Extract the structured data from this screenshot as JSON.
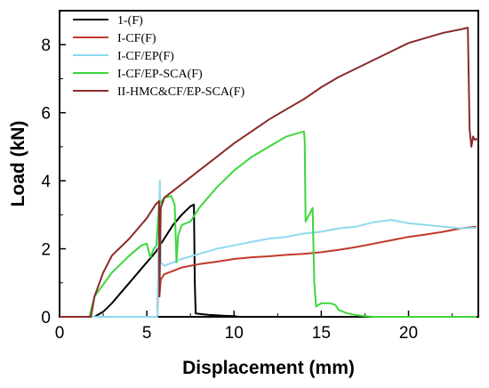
{
  "chart_data": {
    "type": "line",
    "title": "",
    "xlabel": "Displacement (mm)",
    "ylabel": "Load (kN)",
    "xlim": [
      0,
      24
    ],
    "ylim": [
      0,
      9
    ],
    "xticks": [
      0,
      5,
      10,
      15,
      20
    ],
    "yticks": [
      0,
      2,
      4,
      6,
      8
    ],
    "grid": false,
    "legend_position": "top-left",
    "series": [
      {
        "name": "1-(F)",
        "color": "#000000",
        "x": [
          0,
          2.0,
          2.5,
          3.0,
          3.5,
          4.0,
          4.5,
          5.0,
          5.5,
          6.0,
          6.5,
          7.0,
          7.5,
          7.7,
          7.75,
          7.8,
          8.5,
          9.5,
          10.0,
          10.3,
          23.9
        ],
        "y": [
          0,
          0,
          0.15,
          0.4,
          0.7,
          1.0,
          1.3,
          1.6,
          1.9,
          2.3,
          2.7,
          3.0,
          3.25,
          3.3,
          1.0,
          0.1,
          0.06,
          0.03,
          0.02,
          0.0,
          0.0
        ]
      },
      {
        "name": "I-CF(F)",
        "color": "#c0392b",
        "x": [
          0,
          5.6,
          5.7,
          5.72,
          5.8,
          6.0,
          6.5,
          7.0,
          8.0,
          9.0,
          10.0,
          11.0,
          12.0,
          13.0,
          14.0,
          15.0,
          16.0,
          17.0,
          18.0,
          19.0,
          20.0,
          21.0,
          22.0,
          23.0,
          23.9
        ],
        "y": [
          0,
          0,
          1.9,
          0.6,
          1.1,
          1.25,
          1.35,
          1.45,
          1.55,
          1.62,
          1.7,
          1.75,
          1.78,
          1.82,
          1.85,
          1.9,
          1.97,
          2.05,
          2.15,
          2.25,
          2.35,
          2.42,
          2.5,
          2.6,
          2.65
        ]
      },
      {
        "name": "I-CF/EP(F)",
        "color": "#8fd8f0",
        "x": [
          0,
          5.6,
          5.7,
          5.75,
          5.8,
          6.0,
          7.0,
          8.0,
          9.0,
          10.0,
          11.0,
          12.0,
          13.0,
          14.0,
          15.0,
          16.0,
          17.0,
          18.0,
          19.0,
          20.0,
          21.0,
          22.0,
          23.0,
          23.9
        ],
        "y": [
          0,
          0,
          3.0,
          4.0,
          1.6,
          1.5,
          1.7,
          1.85,
          2.0,
          2.1,
          2.2,
          2.3,
          2.35,
          2.45,
          2.5,
          2.6,
          2.65,
          2.78,
          2.85,
          2.75,
          2.7,
          2.65,
          2.6,
          2.62
        ]
      },
      {
        "name": "I-CF/EP-SCA(F)",
        "color": "#3dd63d",
        "x": [
          0,
          1.7,
          2.0,
          3.0,
          4.0,
          4.7,
          5.0,
          5.2,
          5.4,
          5.55,
          5.7,
          6.0,
          6.4,
          6.6,
          6.7,
          6.8,
          7.0,
          7.5,
          8.0,
          9.0,
          10.0,
          11.0,
          12.0,
          13.0,
          14.0,
          14.05,
          14.1,
          14.5,
          14.6,
          14.7,
          15.0,
          15.5,
          15.8,
          16.0,
          16.5,
          17.0,
          17.5,
          18.0,
          23.9
        ],
        "y": [
          0,
          0,
          0.6,
          1.3,
          1.8,
          2.1,
          2.15,
          1.75,
          2.0,
          2.1,
          3.3,
          3.5,
          3.55,
          3.3,
          1.6,
          2.4,
          2.7,
          2.8,
          3.2,
          3.8,
          4.3,
          4.7,
          5.0,
          5.3,
          5.45,
          5.2,
          2.8,
          3.2,
          1.0,
          0.3,
          0.4,
          0.4,
          0.35,
          0.2,
          0.1,
          0.05,
          0.02,
          0.0,
          0.0
        ]
      },
      {
        "name": "II-HMC&CF/EP-SCA(F)",
        "color": "#8b2a2a",
        "x": [
          0,
          1.8,
          2.0,
          2.5,
          3.0,
          4.0,
          5.0,
          5.5,
          5.7,
          5.72,
          5.8,
          6.0,
          7.0,
          8.0,
          9.0,
          10.0,
          11.0,
          12.0,
          13.0,
          14.0,
          15.0,
          16.0,
          17.0,
          18.0,
          19.0,
          20.0,
          21.0,
          22.0,
          23.0,
          23.4,
          23.5,
          23.6,
          23.7,
          23.8,
          24.0
        ],
        "y": [
          0,
          0,
          0.6,
          1.3,
          1.8,
          2.3,
          2.9,
          3.3,
          3.4,
          0.6,
          3.2,
          3.5,
          3.9,
          4.3,
          4.7,
          5.1,
          5.45,
          5.8,
          6.1,
          6.4,
          6.75,
          7.05,
          7.3,
          7.55,
          7.8,
          8.05,
          8.2,
          8.35,
          8.45,
          8.5,
          5.5,
          5.0,
          5.3,
          5.2,
          5.25
        ]
      }
    ]
  }
}
